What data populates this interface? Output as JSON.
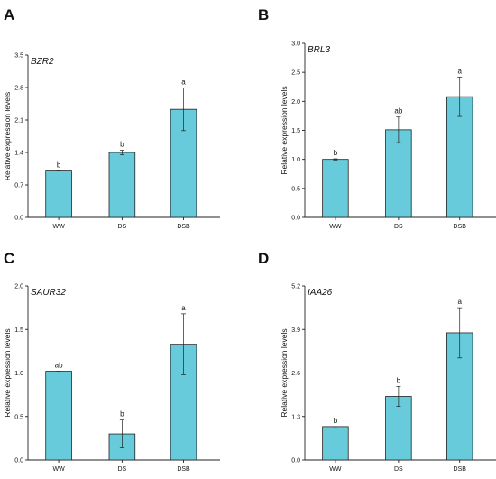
{
  "colors": {
    "bar": "#67CBDB",
    "axis": "#222222"
  },
  "chart_data": [
    {
      "type": "bar",
      "panel": "A",
      "title": "BZR2",
      "ylabel": "Relative expression levels",
      "xlabel": "",
      "categories": [
        "WW",
        "DS",
        "DSB"
      ],
      "values": [
        1.0,
        1.4,
        2.33
      ],
      "errors": [
        0.0,
        0.05,
        0.46
      ],
      "significance": [
        "b",
        "b",
        "a"
      ],
      "ylim": [
        0,
        3.5
      ],
      "yticks": [
        0.0,
        0.7,
        1.4,
        2.1,
        2.8,
        3.5
      ],
      "ytick_labels": [
        "0.0",
        "0.7",
        "1.4",
        "2.1",
        "2.8",
        "3.5"
      ]
    },
    {
      "type": "bar",
      "panel": "B",
      "title": "BRL3",
      "ylabel": "Relative expression levels",
      "xlabel": "",
      "categories": [
        "WW",
        "DS",
        "DSB"
      ],
      "values": [
        1.0,
        1.51,
        2.08
      ],
      "errors": [
        0.01,
        0.22,
        0.34
      ],
      "significance": [
        "b",
        "ab",
        "a"
      ],
      "ylim": [
        0,
        3.0
      ],
      "yticks": [
        0.0,
        0.5,
        1.0,
        1.5,
        2.0,
        2.5,
        3.0
      ],
      "ytick_labels": [
        "0.0",
        "0.5",
        "1.0",
        "1.5",
        "2.0",
        "2.5",
        "3.0"
      ]
    },
    {
      "type": "bar",
      "panel": "C",
      "title": "SAUR32",
      "ylabel": "Relative expression levels",
      "xlabel": "",
      "categories": [
        "WW",
        "DS",
        "DSB"
      ],
      "values": [
        1.02,
        0.3,
        1.33
      ],
      "errors": [
        0.0,
        0.16,
        0.35
      ],
      "significance": [
        "ab",
        "b",
        "a"
      ],
      "ylim": [
        0,
        2.0
      ],
      "yticks": [
        0.0,
        0.5,
        1.0,
        1.5,
        2.0
      ],
      "ytick_labels": [
        "0.0",
        "0.5",
        "1.0",
        "1.5",
        "2.0"
      ]
    },
    {
      "type": "bar",
      "panel": "D",
      "title": "IAA26",
      "ylabel": "Relative expression levels",
      "xlabel": "",
      "categories": [
        "WW",
        "DS",
        "DSB"
      ],
      "values": [
        1.0,
        1.9,
        3.8
      ],
      "errors": [
        0.0,
        0.3,
        0.75
      ],
      "significance": [
        "b",
        "b",
        "a"
      ],
      "ylim": [
        0,
        5.2
      ],
      "yticks": [
        0.0,
        1.3,
        2.6,
        3.9,
        5.2
      ],
      "ytick_labels": [
        "0.0",
        "1.3",
        "2.6",
        "3.9",
        "5.2"
      ]
    }
  ]
}
